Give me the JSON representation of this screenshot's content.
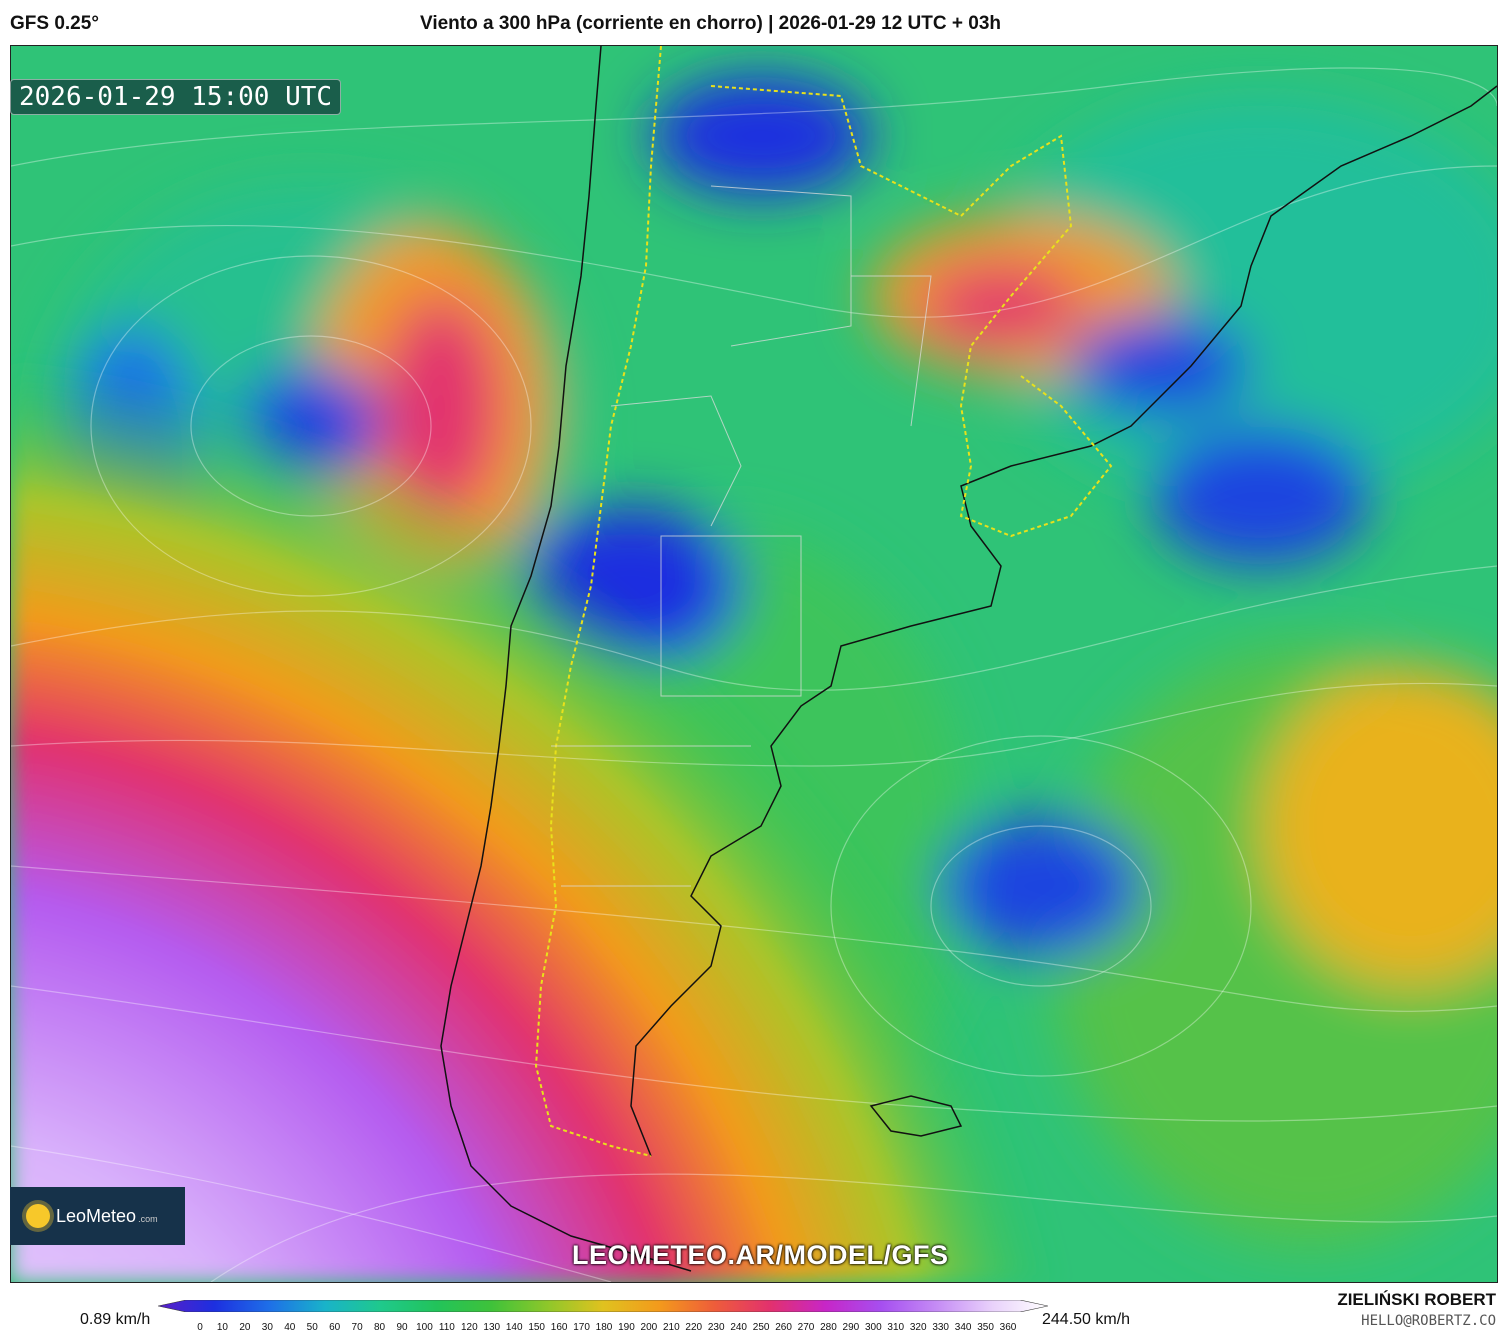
{
  "header": {
    "model": "GFS 0.25°",
    "title": "Viento a 300 hPa (corriente en chorro) | 2026-01-29 12 UTC + 03h"
  },
  "map": {
    "valid_time": "2026-01-29 15:00 UTC",
    "watermark": "LEOMETEO.AR/MODEL/GFS",
    "logo_name": "LeoMeteo",
    "logo_suffix": ".com"
  },
  "colorbar": {
    "min_label": "0.89 km/h",
    "max_label": "244.50 km/h",
    "ticks": [
      "0",
      "10",
      "20",
      "30",
      "40",
      "50",
      "60",
      "70",
      "80",
      "90",
      "100",
      "110",
      "120",
      "130",
      "140",
      "150",
      "160",
      "170",
      "180",
      "190",
      "200",
      "210",
      "220",
      "230",
      "240",
      "250",
      "260",
      "270",
      "280",
      "290",
      "300",
      "310",
      "320",
      "330",
      "340",
      "350",
      "360"
    ],
    "colors": [
      "#5a1fc7",
      "#1d2fe0",
      "#1e6fe8",
      "#19b3c9",
      "#1fc98c",
      "#22c35a",
      "#3fc23a",
      "#8fc72a",
      "#e0c21f",
      "#f39a1c",
      "#ee5d3a",
      "#e2316e",
      "#c726c7",
      "#a64ff0",
      "#c58cf5",
      "#e9d2fb",
      "#ffffff"
    ]
  },
  "author": {
    "name": "ZIELIŃSKI ROBERT",
    "email": "HELLO@ROBERTZ.CO"
  }
}
